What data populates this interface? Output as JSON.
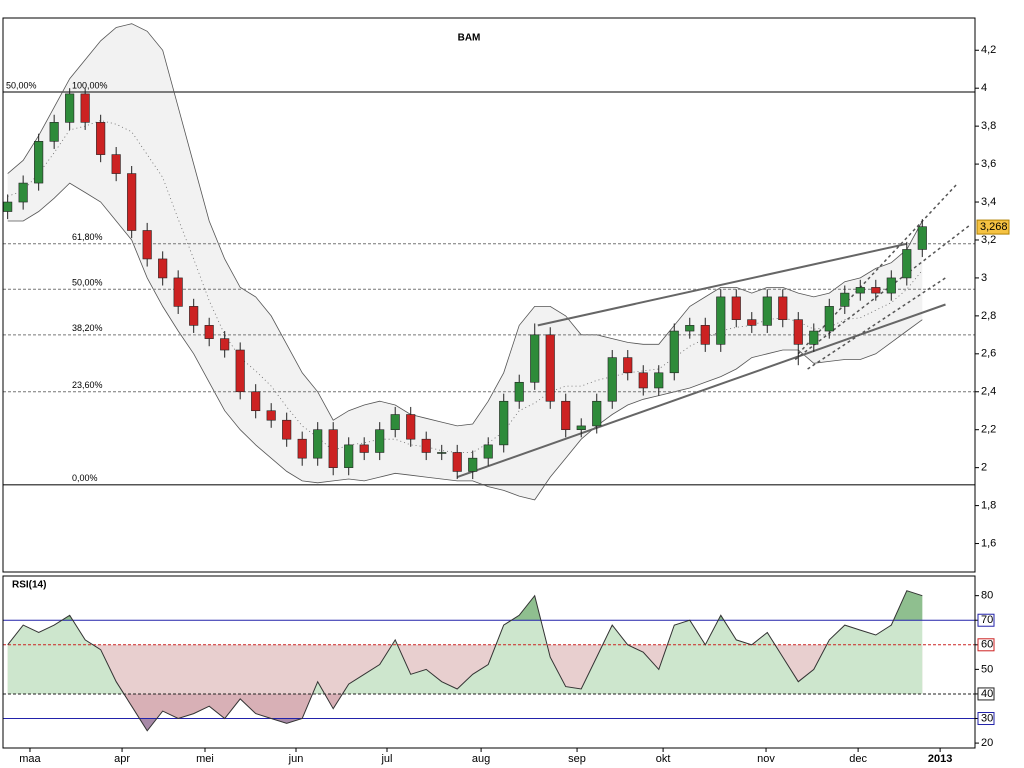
{
  "chart_data": [
    {
      "type": "candlestick",
      "title": "BAM",
      "x": [
        0,
        1,
        2,
        3,
        4,
        5,
        6,
        7,
        8,
        9,
        10,
        11,
        12,
        13,
        14,
        15,
        16,
        17,
        18,
        19,
        20,
        21,
        22,
        23,
        24,
        25,
        26,
        27,
        28,
        29,
        30,
        31,
        32,
        33,
        34,
        35,
        36,
        37,
        38,
        39,
        40,
        41,
        42,
        43,
        44,
        45,
        46,
        47,
        48,
        49,
        50,
        51,
        52,
        53,
        54,
        55,
        56,
        57,
        58,
        59
      ],
      "open": [
        3.35,
        3.4,
        3.5,
        3.72,
        3.82,
        3.97,
        3.82,
        3.65,
        3.55,
        3.25,
        3.1,
        3.0,
        2.85,
        2.75,
        2.68,
        2.62,
        2.4,
        2.3,
        2.25,
        2.15,
        2.05,
        2.2,
        2.0,
        2.12,
        2.08,
        2.2,
        2.28,
        2.15,
        2.08,
        2.08,
        1.98,
        2.05,
        2.12,
        2.35,
        2.45,
        2.7,
        2.35,
        2.2,
        2.22,
        2.35,
        2.58,
        2.5,
        2.42,
        2.5,
        2.72,
        2.75,
        2.65,
        2.9,
        2.78,
        2.75,
        2.9,
        2.78,
        2.65,
        2.72,
        2.85,
        2.92,
        2.95,
        2.92,
        3.0,
        3.15
      ],
      "high": [
        3.44,
        3.54,
        3.76,
        3.86,
        4.0,
        4.0,
        3.86,
        3.69,
        3.59,
        3.29,
        3.14,
        3.04,
        2.89,
        2.79,
        2.72,
        2.66,
        2.44,
        2.34,
        2.29,
        2.19,
        2.24,
        2.24,
        2.16,
        2.16,
        2.24,
        2.32,
        2.32,
        2.19,
        2.12,
        2.12,
        2.09,
        2.16,
        2.39,
        2.49,
        2.76,
        2.74,
        2.39,
        2.26,
        2.39,
        2.62,
        2.62,
        2.54,
        2.54,
        2.76,
        2.79,
        2.79,
        2.94,
        2.94,
        2.82,
        2.94,
        2.94,
        2.82,
        2.76,
        2.89,
        2.96,
        2.99,
        2.99,
        3.04,
        3.19,
        3.31
      ],
      "low": [
        3.31,
        3.36,
        3.46,
        3.68,
        3.78,
        3.78,
        3.61,
        3.51,
        3.21,
        3.06,
        2.96,
        2.81,
        2.71,
        2.64,
        2.58,
        2.36,
        2.26,
        2.21,
        2.11,
        2.01,
        2.01,
        1.96,
        1.96,
        2.04,
        2.04,
        2.16,
        2.11,
        2.04,
        2.04,
        1.94,
        1.94,
        2.01,
        2.08,
        2.31,
        2.41,
        2.31,
        2.16,
        2.16,
        2.18,
        2.31,
        2.46,
        2.38,
        2.38,
        2.46,
        2.68,
        2.61,
        2.61,
        2.74,
        2.71,
        2.71,
        2.74,
        2.54,
        2.61,
        2.68,
        2.81,
        2.88,
        2.88,
        2.88,
        2.96,
        3.11
      ],
      "close": [
        3.4,
        3.5,
        3.72,
        3.82,
        3.97,
        3.82,
        3.65,
        3.55,
        3.25,
        3.1,
        3.0,
        2.85,
        2.75,
        2.68,
        2.62,
        2.4,
        2.3,
        2.25,
        2.15,
        2.05,
        2.2,
        2.0,
        2.12,
        2.08,
        2.2,
        2.28,
        2.15,
        2.08,
        2.08,
        1.98,
        2.05,
        2.12,
        2.35,
        2.45,
        2.7,
        2.35,
        2.2,
        2.22,
        2.35,
        2.58,
        2.5,
        2.42,
        2.5,
        2.72,
        2.75,
        2.65,
        2.9,
        2.78,
        2.75,
        2.9,
        2.78,
        2.65,
        2.72,
        2.85,
        2.92,
        2.95,
        2.92,
        3.0,
        3.15,
        3.27
      ],
      "up_color": "#2e8b3a",
      "down_color": "#cc2222",
      "bollinger": {
        "color": "#f2f2f2",
        "upper": [
          3.55,
          3.62,
          3.75,
          3.9,
          4.05,
          4.15,
          4.25,
          4.32,
          4.34,
          4.3,
          4.2,
          3.9,
          3.6,
          3.3,
          3.1,
          2.95,
          2.9,
          2.8,
          2.65,
          2.5,
          2.4,
          2.25,
          2.3,
          2.33,
          2.35,
          2.33,
          2.28,
          2.26,
          2.24,
          2.22,
          2.23,
          2.35,
          2.5,
          2.75,
          2.85,
          2.85,
          2.8,
          2.7,
          2.7,
          2.68,
          2.66,
          2.65,
          2.65,
          2.75,
          2.85,
          2.9,
          2.95,
          2.95,
          2.92,
          2.95,
          2.95,
          2.92,
          2.9,
          2.92,
          2.98,
          3.0,
          3.05,
          3.08,
          3.15,
          3.3
        ],
        "middle": [
          3.43,
          3.46,
          3.55,
          3.66,
          3.78,
          3.8,
          3.83,
          3.81,
          3.77,
          3.65,
          3.53,
          3.31,
          3.1,
          2.88,
          2.7,
          2.58,
          2.51,
          2.43,
          2.32,
          2.22,
          2.16,
          2.09,
          2.12,
          2.13,
          2.15,
          2.15,
          2.12,
          2.11,
          2.09,
          2.08,
          2.08,
          2.13,
          2.19,
          2.3,
          2.34,
          2.4,
          2.43,
          2.43,
          2.46,
          2.48,
          2.5,
          2.51,
          2.52,
          2.58,
          2.64,
          2.68,
          2.72,
          2.74,
          2.75,
          2.78,
          2.79,
          2.77,
          2.73,
          2.74,
          2.78,
          2.79,
          2.83,
          2.87,
          2.94,
          3.04
        ],
        "lower": [
          3.3,
          3.3,
          3.35,
          3.42,
          3.5,
          3.45,
          3.4,
          3.3,
          3.2,
          3.0,
          2.85,
          2.72,
          2.6,
          2.45,
          2.3,
          2.2,
          2.12,
          2.05,
          1.98,
          1.93,
          1.92,
          1.93,
          1.94,
          1.93,
          1.95,
          1.97,
          1.96,
          1.95,
          1.94,
          1.93,
          1.93,
          1.9,
          1.88,
          1.85,
          1.83,
          1.95,
          2.05,
          2.15,
          2.22,
          2.28,
          2.33,
          2.36,
          2.38,
          2.4,
          2.42,
          2.45,
          2.48,
          2.52,
          2.58,
          2.6,
          2.62,
          2.62,
          2.55,
          2.56,
          2.57,
          2.57,
          2.6,
          2.66,
          2.72,
          2.78
        ]
      },
      "fibonacci": {
        "levels": [
          {
            "value": 3.98,
            "label": "100,00%",
            "style": "solid"
          },
          {
            "value": 3.18,
            "label": "61,80%",
            "style": "dashed"
          },
          {
            "value": 2.94,
            "label": "50,00%",
            "style": "dashed"
          },
          {
            "value": 2.7,
            "label": "38,20%",
            "style": "dashed"
          },
          {
            "value": 2.4,
            "label": "23,60%",
            "style": "dashed"
          },
          {
            "value": 1.91,
            "label": "0,00%",
            "style": "solid"
          }
        ],
        "side_label": "50,00%"
      },
      "trendlines": [
        {
          "x": [
            34.2,
            58.0
          ],
          "y": [
            2.75,
            3.18
          ],
          "style": "solid"
        },
        {
          "x": [
            29.0,
            60.5
          ],
          "y": [
            1.95,
            2.86
          ],
          "style": "solid"
        },
        {
          "x": [
            51.0,
            61.3
          ],
          "y": [
            2.6,
            3.5
          ],
          "style": "dashed"
        },
        {
          "x": [
            50.8,
            62.1
          ],
          "y": [
            2.57,
            3.28
          ],
          "style": "dashed"
        },
        {
          "x": [
            51.6,
            60.5
          ],
          "y": [
            2.52,
            3.0
          ],
          "style": "dashed"
        }
      ],
      "last_value": 3.268,
      "last_value_label": "3,268",
      "xlim": [
        -0.3,
        62.4
      ],
      "ylim": [
        1.45,
        4.37
      ],
      "yticks": [
        {
          "value": 1.6,
          "label": "1,6"
        },
        {
          "value": 1.8,
          "label": "1,8"
        },
        2,
        {
          "value": 2.2,
          "label": "2,2"
        },
        {
          "value": 2.4,
          "label": "2,4"
        },
        {
          "value": 2.6,
          "label": "2,6"
        },
        {
          "value": 2.8,
          "label": "2,8"
        },
        3,
        {
          "value": 3.2,
          "label": "3,2"
        },
        {
          "value": 3.4,
          "label": "3,4"
        },
        {
          "value": 3.6,
          "label": "3,6"
        },
        {
          "value": 3.8,
          "label": "3,8"
        },
        4,
        {
          "value": 4.2,
          "label": "4,2"
        }
      ]
    },
    {
      "type": "line",
      "title": "RSI(14)",
      "x": [
        0,
        1,
        2,
        3,
        4,
        5,
        6,
        7,
        8,
        9,
        10,
        11,
        12,
        13,
        14,
        15,
        16,
        17,
        18,
        19,
        20,
        21,
        22,
        23,
        24,
        25,
        26,
        27,
        28,
        29,
        30,
        31,
        32,
        33,
        34,
        35,
        36,
        37,
        38,
        39,
        40,
        41,
        42,
        43,
        44,
        45,
        46,
        47,
        48,
        49,
        50,
        51,
        52,
        53,
        54,
        55,
        56,
        57,
        58,
        59
      ],
      "values": [
        60,
        68,
        65,
        68,
        72,
        62,
        58,
        45,
        35,
        25,
        33,
        30,
        32,
        35,
        30,
        38,
        32,
        30,
        28,
        30,
        45,
        34,
        44,
        48,
        52,
        62,
        48,
        50,
        45,
        42,
        48,
        52,
        68,
        72,
        80,
        55,
        43,
        42,
        55,
        68,
        60,
        57,
        50,
        68,
        70,
        60,
        72,
        62,
        60,
        65,
        55,
        45,
        50,
        62,
        68,
        66,
        64,
        68,
        82,
        80
      ],
      "color": "#333333",
      "levels": [
        {
          "value": 70,
          "color": "#2222aa",
          "style": "solid"
        },
        {
          "value": 60,
          "color": "#cc2222",
          "style": "dashed"
        },
        {
          "value": 40,
          "color": "#222222",
          "style": "dashed"
        },
        {
          "value": 30,
          "color": "#2222aa",
          "style": "solid"
        }
      ],
      "band": {
        "from": 40,
        "to": 60,
        "color": "#e8cfcf"
      },
      "zones": [
        {
          "from": 40,
          "side": "above",
          "color": "#cde6cd"
        },
        {
          "from": 70,
          "side": "above",
          "color": "#8fbf8f"
        },
        {
          "from": 40,
          "side": "below",
          "color": "#d8b0b6"
        },
        {
          "from": 30,
          "side": "below",
          "color": "#a88aa8"
        }
      ],
      "xlim": [
        -0.3,
        62.4
      ],
      "ylim": [
        18,
        88
      ],
      "yticks": [
        20,
        30,
        40,
        50,
        60,
        70,
        80
      ],
      "xticks": [
        {
          "value": 1.44,
          "label": "maa"
        },
        {
          "value": 7.38,
          "label": "apr"
        },
        {
          "value": 12.73,
          "label": "mei"
        },
        {
          "value": 18.6,
          "label": "jun"
        },
        {
          "value": 24.47,
          "label": "jul"
        },
        {
          "value": 30.54,
          "label": "aug"
        },
        {
          "value": 36.73,
          "label": "sep"
        },
        {
          "value": 42.28,
          "label": "okt"
        },
        {
          "value": 48.92,
          "label": "nov"
        },
        {
          "value": 54.86,
          "label": "dec"
        },
        {
          "value": 60.15,
          "label": "2013"
        }
      ]
    }
  ]
}
